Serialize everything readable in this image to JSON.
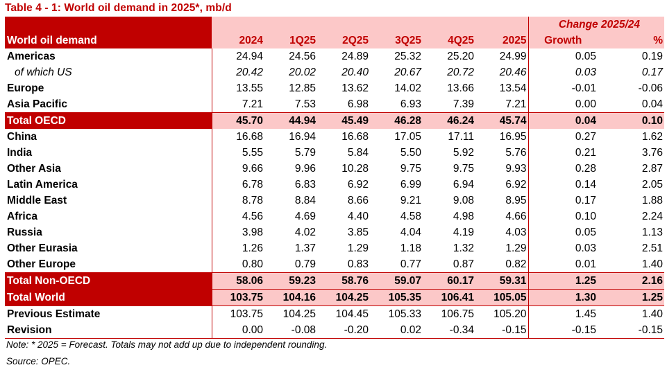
{
  "title": "Table 4 - 1: World oil demand in 2025*, mb/d",
  "header": {
    "first": "World oil demand",
    "cols": [
      "2024",
      "1Q25",
      "2Q25",
      "3Q25",
      "4Q25",
      "2025"
    ],
    "change": "Change 2025/24",
    "growth": "Growth",
    "pct": "%"
  },
  "rows": [
    {
      "label": "Americas",
      "v": [
        "24.94",
        "24.56",
        "24.89",
        "25.32",
        "25.20",
        "24.99",
        "0.05",
        "0.19"
      ]
    },
    {
      "label": "of which US",
      "v": [
        "20.42",
        "20.02",
        "20.40",
        "20.67",
        "20.72",
        "20.46",
        "0.03",
        "0.17"
      ]
    },
    {
      "label": "Europe",
      "v": [
        "13.55",
        "12.85",
        "13.62",
        "14.02",
        "13.66",
        "13.54",
        "-0.01",
        "-0.06"
      ]
    },
    {
      "label": "Asia Pacific",
      "v": [
        "7.21",
        "7.53",
        "6.98",
        "6.93",
        "7.39",
        "7.21",
        "0.00",
        "0.04"
      ]
    },
    {
      "label": "Total OECD",
      "v": [
        "45.70",
        "44.94",
        "45.49",
        "46.28",
        "46.24",
        "45.74",
        "0.04",
        "0.10"
      ]
    },
    {
      "label": "China",
      "v": [
        "16.68",
        "16.94",
        "16.68",
        "17.05",
        "17.11",
        "16.95",
        "0.27",
        "1.62"
      ]
    },
    {
      "label": "India",
      "v": [
        "5.55",
        "5.79",
        "5.84",
        "5.50",
        "5.92",
        "5.76",
        "0.21",
        "3.76"
      ]
    },
    {
      "label": "Other Asia",
      "v": [
        "9.66",
        "9.96",
        "10.28",
        "9.75",
        "9.75",
        "9.93",
        "0.28",
        "2.87"
      ]
    },
    {
      "label": "Latin America",
      "v": [
        "6.78",
        "6.83",
        "6.92",
        "6.99",
        "6.94",
        "6.92",
        "0.14",
        "2.05"
      ]
    },
    {
      "label": "Middle East",
      "v": [
        "8.78",
        "8.84",
        "8.66",
        "9.21",
        "9.08",
        "8.95",
        "0.17",
        "1.88"
      ]
    },
    {
      "label": "Africa",
      "v": [
        "4.56",
        "4.69",
        "4.40",
        "4.58",
        "4.98",
        "4.66",
        "0.10",
        "2.24"
      ]
    },
    {
      "label": "Russia",
      "v": [
        "3.98",
        "4.02",
        "3.85",
        "4.04",
        "4.19",
        "4.03",
        "0.05",
        "1.13"
      ]
    },
    {
      "label": "Other Eurasia",
      "v": [
        "1.26",
        "1.37",
        "1.29",
        "1.18",
        "1.32",
        "1.29",
        "0.03",
        "2.51"
      ]
    },
    {
      "label": "Other Europe",
      "v": [
        "0.80",
        "0.79",
        "0.83",
        "0.77",
        "0.87",
        "0.82",
        "0.01",
        "1.40"
      ]
    },
    {
      "label": "Total Non-OECD",
      "v": [
        "58.06",
        "59.23",
        "58.76",
        "59.07",
        "60.17",
        "59.31",
        "1.25",
        "2.16"
      ]
    },
    {
      "label": "Total World",
      "v": [
        "103.75",
        "104.16",
        "104.25",
        "105.35",
        "106.41",
        "105.05",
        "1.30",
        "1.25"
      ]
    },
    {
      "label": "Previous Estimate",
      "v": [
        "103.75",
        "104.25",
        "104.45",
        "105.33",
        "106.75",
        "105.20",
        "1.45",
        "1.40"
      ]
    },
    {
      "label": "Revision",
      "v": [
        "0.00",
        "-0.08",
        "-0.20",
        "0.02",
        "-0.34",
        "-0.15",
        "-0.15",
        "-0.15"
      ]
    }
  ],
  "notes": {
    "note": "Note: * 2025 = Forecast. Totals may not add up due to independent rounding.",
    "source": "Source: OPEC."
  },
  "colors": {
    "accent": "#c00000",
    "highlight": "#fcc8c8"
  }
}
